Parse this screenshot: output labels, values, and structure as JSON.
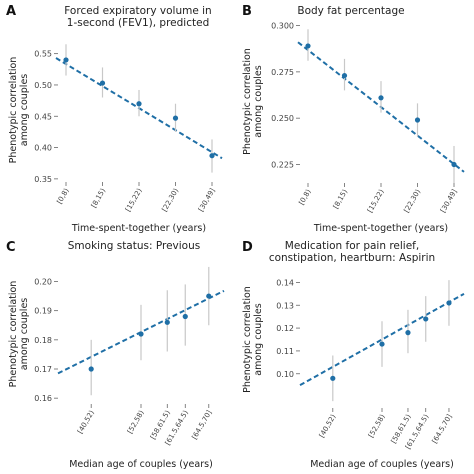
{
  "colors": {
    "point": "#1f6fa6",
    "errorbar": "#c8c8c8",
    "fit": "#1f6fa6"
  },
  "chart_data": [
    {
      "letter": "A",
      "type": "scatter",
      "title_lines": [
        "Forced expiratory volume in",
        "1-second (FEV1), predicted"
      ],
      "ylabel_lines": [
        "Phenotypic correlation",
        "among couples"
      ],
      "xlabel": "Time-spent-together (years)",
      "categories": [
        "[0,8)",
        "[8,15)",
        "[15,22)",
        "[22,30)",
        "[30,49]"
      ],
      "y": [
        0.54,
        0.503,
        0.47,
        0.447,
        0.387
      ],
      "y_low": [
        0.515,
        0.48,
        0.45,
        0.425,
        0.36
      ],
      "y_high": [
        0.565,
        0.528,
        0.492,
        0.47,
        0.413
      ],
      "yticks": [
        0.35,
        0.4,
        0.45,
        0.5,
        0.55
      ],
      "ytick_labels": [
        "0.35",
        "0.40",
        "0.45",
        "0.50",
        "0.55"
      ],
      "ylim": [
        0.345,
        0.575
      ],
      "fit": [
        0.543,
        0.383
      ],
      "grid": false
    },
    {
      "letter": "B",
      "type": "scatter",
      "title_lines": [
        "Body fat percentage"
      ],
      "ylabel_lines": [
        "Phenotypic correlation",
        "among couples"
      ],
      "xlabel": "Time-spent-together (years)",
      "categories": [
        "[0,8)",
        "[8,15)",
        "[15,22)",
        "[22,30)",
        "[30,49]"
      ],
      "y": [
        0.289,
        0.273,
        0.261,
        0.249,
        0.225
      ],
      "y_low": [
        0.281,
        0.265,
        0.253,
        0.24,
        0.215
      ],
      "y_high": [
        0.298,
        0.282,
        0.27,
        0.258,
        0.235
      ],
      "yticks": [
        0.225,
        0.25,
        0.275,
        0.3
      ],
      "ytick_labels": [
        "0.225",
        "0.250",
        "0.275",
        "0.300"
      ],
      "ylim": [
        0.215,
        0.303
      ],
      "fit": [
        0.291,
        0.221
      ],
      "grid": false
    },
    {
      "letter": "C",
      "type": "scatter",
      "title_lines": [
        "Smoking status: Previous"
      ],
      "ylabel_lines": [
        "Phenotypic correlation",
        "among couples"
      ],
      "xlabel": "Median age of couples (years)",
      "categories": [
        "[40,52)",
        "[52,58)",
        "[58,61.5)",
        "[61.5,64.5)",
        "[64.5,70]"
      ],
      "x": [
        46,
        55,
        59.75,
        63,
        67.25
      ],
      "xlim": [
        40,
        70
      ],
      "y": [
        0.17,
        0.182,
        0.186,
        0.188,
        0.195
      ],
      "y_low": [
        0.161,
        0.173,
        0.176,
        0.178,
        0.185
      ],
      "y_high": [
        0.18,
        0.192,
        0.197,
        0.199,
        0.205
      ],
      "yticks": [
        0.16,
        0.17,
        0.18,
        0.19,
        0.2
      ],
      "ytick_labels": [
        "0.16",
        "0.17",
        "0.18",
        "0.19",
        "0.20"
      ],
      "ylim": [
        0.158,
        0.206
      ],
      "fit": [
        0.1685,
        0.1968
      ],
      "grid": false
    },
    {
      "letter": "D",
      "type": "scatter",
      "title_lines": [
        "Medication for pain relief,",
        "constipation, heartburn: Aspirin"
      ],
      "ylabel_lines": [
        "Phenotypic correlation",
        "among couples"
      ],
      "xlabel": "Median age of couples (years)",
      "categories": [
        "[40,52)",
        "[52,58)",
        "[58,61.5)",
        "[61.5,64.5)",
        "[64.5,70]"
      ],
      "x": [
        46,
        55,
        59.75,
        63,
        67.25
      ],
      "xlim": [
        40,
        70
      ],
      "y": [
        0.098,
        0.113,
        0.118,
        0.124,
        0.131
      ],
      "y_low": [
        0.088,
        0.103,
        0.109,
        0.114,
        0.121
      ],
      "y_high": [
        0.108,
        0.123,
        0.128,
        0.134,
        0.141
      ],
      "yticks": [
        0.1,
        0.11,
        0.12,
        0.13,
        0.14
      ],
      "ytick_labels": [
        "0.10",
        "0.11",
        "0.12",
        "0.13",
        "0.14"
      ],
      "ylim": [
        0.085,
        0.145
      ],
      "fit": [
        0.095,
        0.135
      ],
      "grid": false
    }
  ]
}
